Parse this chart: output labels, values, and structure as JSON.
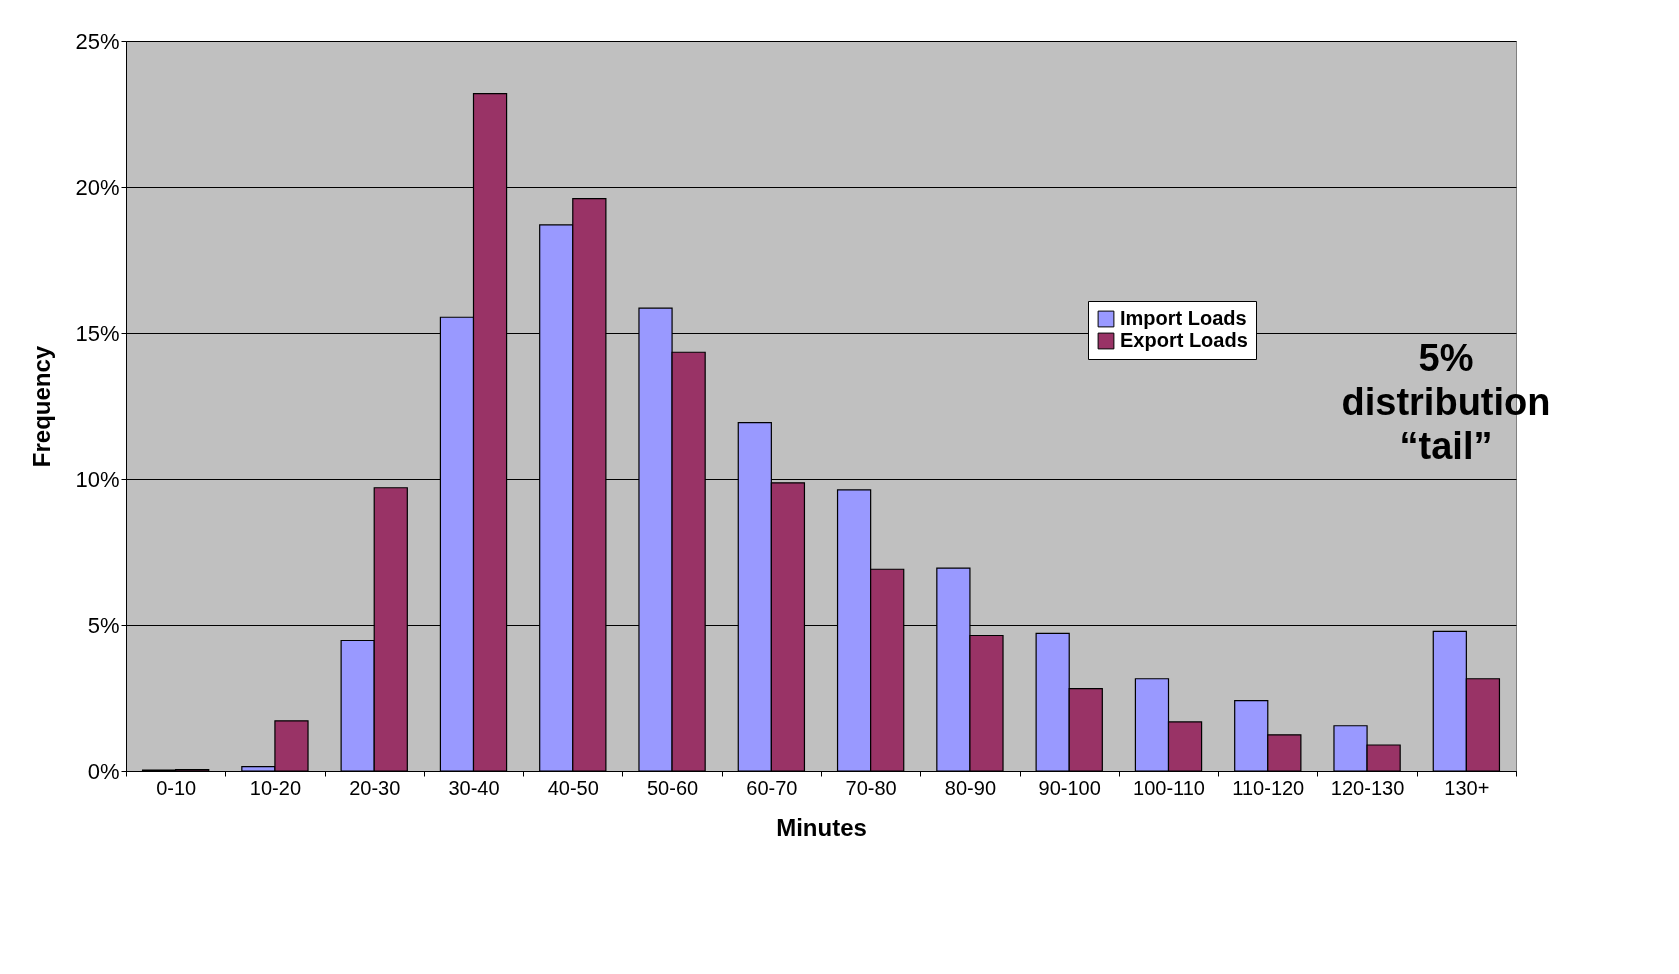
{
  "chart_data": {
    "type": "bar",
    "xlabel": "Minutes",
    "ylabel": "Frequency",
    "categories": [
      "0-10",
      "10-20",
      "20-30",
      "30-40",
      "40-50",
      "50-60",
      "60-70",
      "70-80",
      "80-90",
      "90-100",
      "100-110",
      "110-120",
      "120-130",
      "130+"
    ],
    "series": [
      {
        "name": "Import Loads",
        "color": "#9999ff",
        "values": [
          0.03,
          0.15,
          4.47,
          15.54,
          18.7,
          15.85,
          11.93,
          9.63,
          6.95,
          4.71,
          3.16,
          2.41,
          1.55,
          4.78
        ]
      },
      {
        "name": "Export Loads",
        "color": "#993366",
        "values": [
          0.05,
          1.72,
          9.7,
          23.2,
          19.6,
          14.34,
          9.87,
          6.91,
          4.64,
          2.82,
          1.68,
          1.24,
          0.89,
          3.16
        ]
      }
    ],
    "ylim": [
      0,
      25
    ],
    "yticks": [
      {
        "value": 0,
        "label": "0%"
      },
      {
        "value": 5,
        "label": "5%"
      },
      {
        "value": 10,
        "label": "10%"
      },
      {
        "value": 15,
        "label": "15%"
      },
      {
        "value": 20,
        "label": "20%"
      },
      {
        "value": 25,
        "label": "25%"
      }
    ],
    "grid": "y",
    "legend": "top right",
    "annotations": [
      "5% distribution “tail”"
    ]
  }
}
